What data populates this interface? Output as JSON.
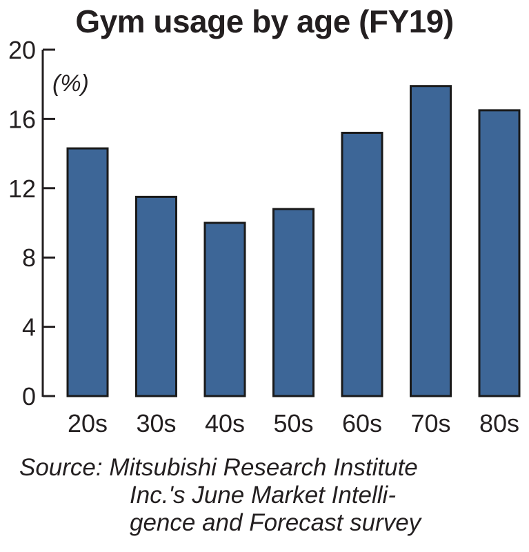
{
  "chart_data": {
    "type": "bar",
    "title": "Gym usage by age (FY19)",
    "ylabel": "(%)",
    "xlabel": "",
    "categories": [
      "20s",
      "30s",
      "40s",
      "50s",
      "60s",
      "70s",
      "80s"
    ],
    "values": [
      14.3,
      11.5,
      10.0,
      10.8,
      15.2,
      17.9,
      16.5
    ],
    "ylim": [
      0,
      20
    ],
    "yticks": [
      0,
      4,
      8,
      12,
      16,
      20
    ],
    "grid": false,
    "bar_color": "#3d6697",
    "source_lines": [
      "Source: Mitsubishi Research Institute",
      "Inc.'s June Market Intelli-",
      "gence and Forecast survey"
    ]
  }
}
